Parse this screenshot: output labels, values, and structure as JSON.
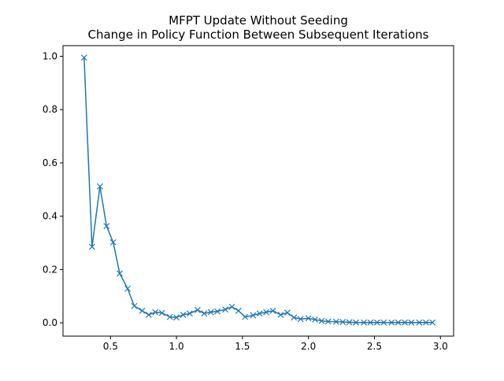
{
  "chart_data": {
    "type": "line",
    "title": "MFPT Update Without Seeding",
    "subtitle": "Change in Policy Function Between Subsequent Iterations",
    "xlabel": "",
    "ylabel": "",
    "xlim": [
      0.14,
      3.1
    ],
    "ylim": [
      -0.05,
      1.04
    ],
    "xticks": [
      0.5,
      1.0,
      1.5,
      2.0,
      2.5,
      3.0
    ],
    "xtick_labels": [
      "0.5",
      "1.0",
      "1.5",
      "2.0",
      "2.5",
      "3.0"
    ],
    "yticks": [
      0.0,
      0.2,
      0.4,
      0.6,
      0.8,
      1.0
    ],
    "ytick_labels": [
      "0.0",
      "0.2",
      "0.4",
      "0.6",
      "0.8",
      "1.0"
    ],
    "grid": false,
    "legend": "none",
    "marker": "x",
    "color": "#1f77b4",
    "series": [
      {
        "x": [
          0.3,
          0.36,
          0.42,
          0.47,
          0.52,
          0.57,
          0.63,
          0.68,
          0.74,
          0.79,
          0.84,
          0.89,
          0.95,
          1.0,
          1.05,
          1.1,
          1.16,
          1.21,
          1.26,
          1.31,
          1.37,
          1.42,
          1.47,
          1.52,
          1.58,
          1.63,
          1.68,
          1.73,
          1.79,
          1.84,
          1.89,
          1.94,
          2.0,
          2.05,
          2.1,
          2.15,
          2.21,
          2.26,
          2.31,
          2.36,
          2.42,
          2.47,
          2.52,
          2.57,
          2.63,
          2.68,
          2.73,
          2.78,
          2.84,
          2.89,
          2.94
        ],
        "y": [
          0.995,
          0.285,
          0.512,
          0.363,
          0.302,
          0.185,
          0.128,
          0.063,
          0.045,
          0.03,
          0.04,
          0.037,
          0.022,
          0.02,
          0.03,
          0.035,
          0.048,
          0.035,
          0.04,
          0.043,
          0.05,
          0.06,
          0.045,
          0.022,
          0.028,
          0.035,
          0.04,
          0.045,
          0.03,
          0.038,
          0.02,
          0.014,
          0.017,
          0.012,
          0.007,
          0.005,
          0.004,
          0.003,
          0.002,
          0.001,
          0.001,
          0.001,
          0.001,
          0.001,
          0.001,
          0.001,
          0.001,
          0.001,
          0.001,
          0.001,
          0.001
        ]
      }
    ]
  }
}
